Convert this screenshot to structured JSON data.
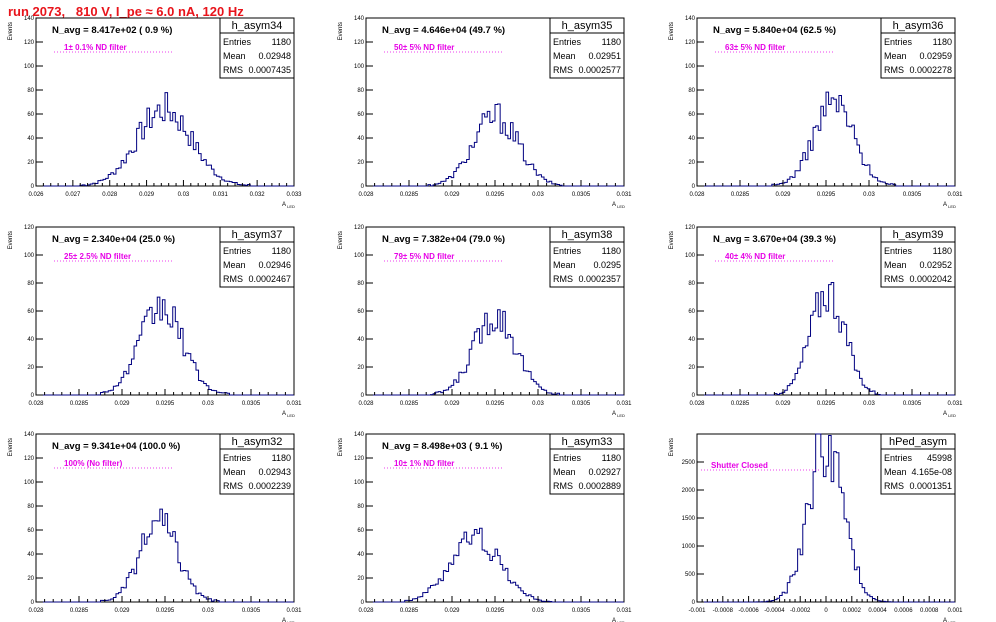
{
  "page_title": "run 2073,   810 V, I_pe ≈ 6.0 nA, 120 Hz",
  "stats_labels": {
    "entries": "Entries",
    "mean": "Mean",
    "rms": "RMS"
  },
  "y_axis_label": "Events",
  "x_axis_label": "A_LED",
  "colors": {
    "histogram": "#000080",
    "title_red": "#e8141b",
    "annotation_magenta": "#e600e6",
    "frame": "#000000"
  },
  "chart_data": [
    {
      "type": "histogram",
      "name": "h_asym34",
      "n_avg": "N_avg = 8.417e+02 ( 0.9 %)",
      "filter_note": "1± 0.1% ND filter",
      "entries": "1180",
      "mean": "0.02948",
      "rms": "0.0007435",
      "xlim": [
        0.026,
        0.033
      ],
      "ylim": [
        0,
        140
      ],
      "xticks": [
        "0.026",
        "0.027",
        "0.028",
        "0.029",
        "0.03",
        "0.031",
        "0.032",
        "0.033"
      ],
      "yticks": [
        "0",
        "20",
        "40",
        "60",
        "80",
        "100",
        "120",
        "140"
      ],
      "peak": 64,
      "center": 0.02948,
      "sigma": 0.00074
    },
    {
      "type": "histogram",
      "name": "h_asym35",
      "n_avg": "N_avg = 4.646e+04 (49.7 %)",
      "filter_note": "50± 5% ND filter",
      "entries": "1180",
      "mean": "0.02951",
      "rms": "0.0002577",
      "xlim": [
        0.028,
        0.031
      ],
      "ylim": [
        0,
        140
      ],
      "xticks": [
        "0.028",
        "0.0285",
        "0.029",
        "0.0295",
        "0.03",
        "0.0305",
        "0.031"
      ],
      "yticks": [
        "0",
        "20",
        "40",
        "60",
        "80",
        "100",
        "120",
        "140"
      ],
      "peak": 58,
      "center": 0.02951,
      "sigma": 0.00026
    },
    {
      "type": "histogram",
      "name": "h_asym36",
      "n_avg": "N_avg = 5.840e+04 (62.5 %)",
      "filter_note": "63± 5% ND filter",
      "entries": "1180",
      "mean": "0.02959",
      "rms": "0.0002278",
      "xlim": [
        0.028,
        0.031
      ],
      "ylim": [
        0,
        140
      ],
      "xticks": [
        "0.028",
        "0.0285",
        "0.029",
        "0.0295",
        "0.03",
        "0.0305",
        "0.031"
      ],
      "yticks": [
        "0",
        "20",
        "40",
        "60",
        "80",
        "100",
        "120",
        "140"
      ],
      "peak": 70,
      "center": 0.02959,
      "sigma": 0.00023
    },
    {
      "type": "histogram",
      "name": "h_asym37",
      "n_avg": "N_avg = 2.340e+04 (25.0 %)",
      "filter_note": "25± 2.5% ND filter",
      "entries": "1180",
      "mean": "0.02946",
      "rms": "0.0002467",
      "xlim": [
        0.028,
        0.031
      ],
      "ylim": [
        0,
        120
      ],
      "xticks": [
        "0.028",
        "0.0285",
        "0.029",
        "0.0295",
        "0.03",
        "0.0305",
        "0.031"
      ],
      "yticks": [
        "0",
        "20",
        "40",
        "60",
        "80",
        "100",
        "120"
      ],
      "peak": 62,
      "center": 0.02946,
      "sigma": 0.00025
    },
    {
      "type": "histogram",
      "name": "h_asym38",
      "n_avg": "N_avg = 7.382e+04 (79.0 %)",
      "filter_note": "79± 5% ND filter",
      "entries": "1180",
      "mean": "0.0295",
      "rms": "0.0002357",
      "xlim": [
        0.028,
        0.031
      ],
      "ylim": [
        0,
        120
      ],
      "xticks": [
        "0.028",
        "0.0285",
        "0.029",
        "0.0295",
        "0.03",
        "0.0305",
        "0.031"
      ],
      "yticks": [
        "0",
        "20",
        "40",
        "60",
        "80",
        "100",
        "120"
      ],
      "peak": 58,
      "center": 0.0295,
      "sigma": 0.00024
    },
    {
      "type": "histogram",
      "name": "h_asym39",
      "n_avg": "N_avg = 3.670e+04 (39.3 %)",
      "filter_note": "40± 4% ND filter",
      "entries": "1180",
      "mean": "0.02952",
      "rms": "0.0002042",
      "xlim": [
        0.028,
        0.031
      ],
      "ylim": [
        0,
        120
      ],
      "xticks": [
        "0.028",
        "0.0285",
        "0.029",
        "0.0295",
        "0.03",
        "0.0305",
        "0.031"
      ],
      "yticks": [
        "0",
        "20",
        "40",
        "60",
        "80",
        "100",
        "120"
      ],
      "peak": 74,
      "center": 0.02952,
      "sigma": 0.0002
    },
    {
      "type": "histogram",
      "name": "h_asym32",
      "n_avg": "N_avg = 9.341e+04 (100.0 %)",
      "filter_note": "100% (No filter)",
      "entries": "1180",
      "mean": "0.02943",
      "rms": "0.0002239",
      "xlim": [
        0.028,
        0.031
      ],
      "ylim": [
        0,
        140
      ],
      "xticks": [
        "0.028",
        "0.0285",
        "0.029",
        "0.0295",
        "0.03",
        "0.0305",
        "0.031"
      ],
      "yticks": [
        "0",
        "20",
        "40",
        "60",
        "80",
        "100",
        "120",
        "140"
      ],
      "peak": 66,
      "center": 0.02943,
      "sigma": 0.00022
    },
    {
      "type": "histogram",
      "name": "h_asym33",
      "n_avg": "N_avg = 8.498e+03 ( 9.1 %)",
      "filter_note": "10± 1% ND filter",
      "entries": "1180",
      "mean": "0.02927",
      "rms": "0.0002889",
      "xlim": [
        0.028,
        0.031
      ],
      "ylim": [
        0,
        140
      ],
      "xticks": [
        "0.028",
        "0.0285",
        "0.029",
        "0.0295",
        "0.03",
        "0.0305",
        "0.031"
      ],
      "yticks": [
        "0",
        "20",
        "40",
        "60",
        "80",
        "100",
        "120",
        "140"
      ],
      "peak": 54,
      "center": 0.02927,
      "sigma": 0.00029
    },
    {
      "type": "histogram",
      "name": "hPed_asym",
      "n_avg": "",
      "filter_note": "Shutter Closed",
      "entries": "45998",
      "mean": "4.165e-08",
      "rms": "0.0001351",
      "xlim": [
        -0.001,
        0.001
      ],
      "ylim": [
        0,
        3000
      ],
      "xticks": [
        "-0.001",
        "-0.0008",
        "-0.0006",
        "-0.0004",
        "-0.0002",
        "0",
        "0.0002",
        "0.0004",
        "0.0006",
        "0.0008",
        "0.001"
      ],
      "yticks": [
        "0",
        "500",
        "1000",
        "1500",
        "2000",
        "2500"
      ],
      "peak": 2850,
      "center": 0.0,
      "sigma": 0.000135
    }
  ]
}
